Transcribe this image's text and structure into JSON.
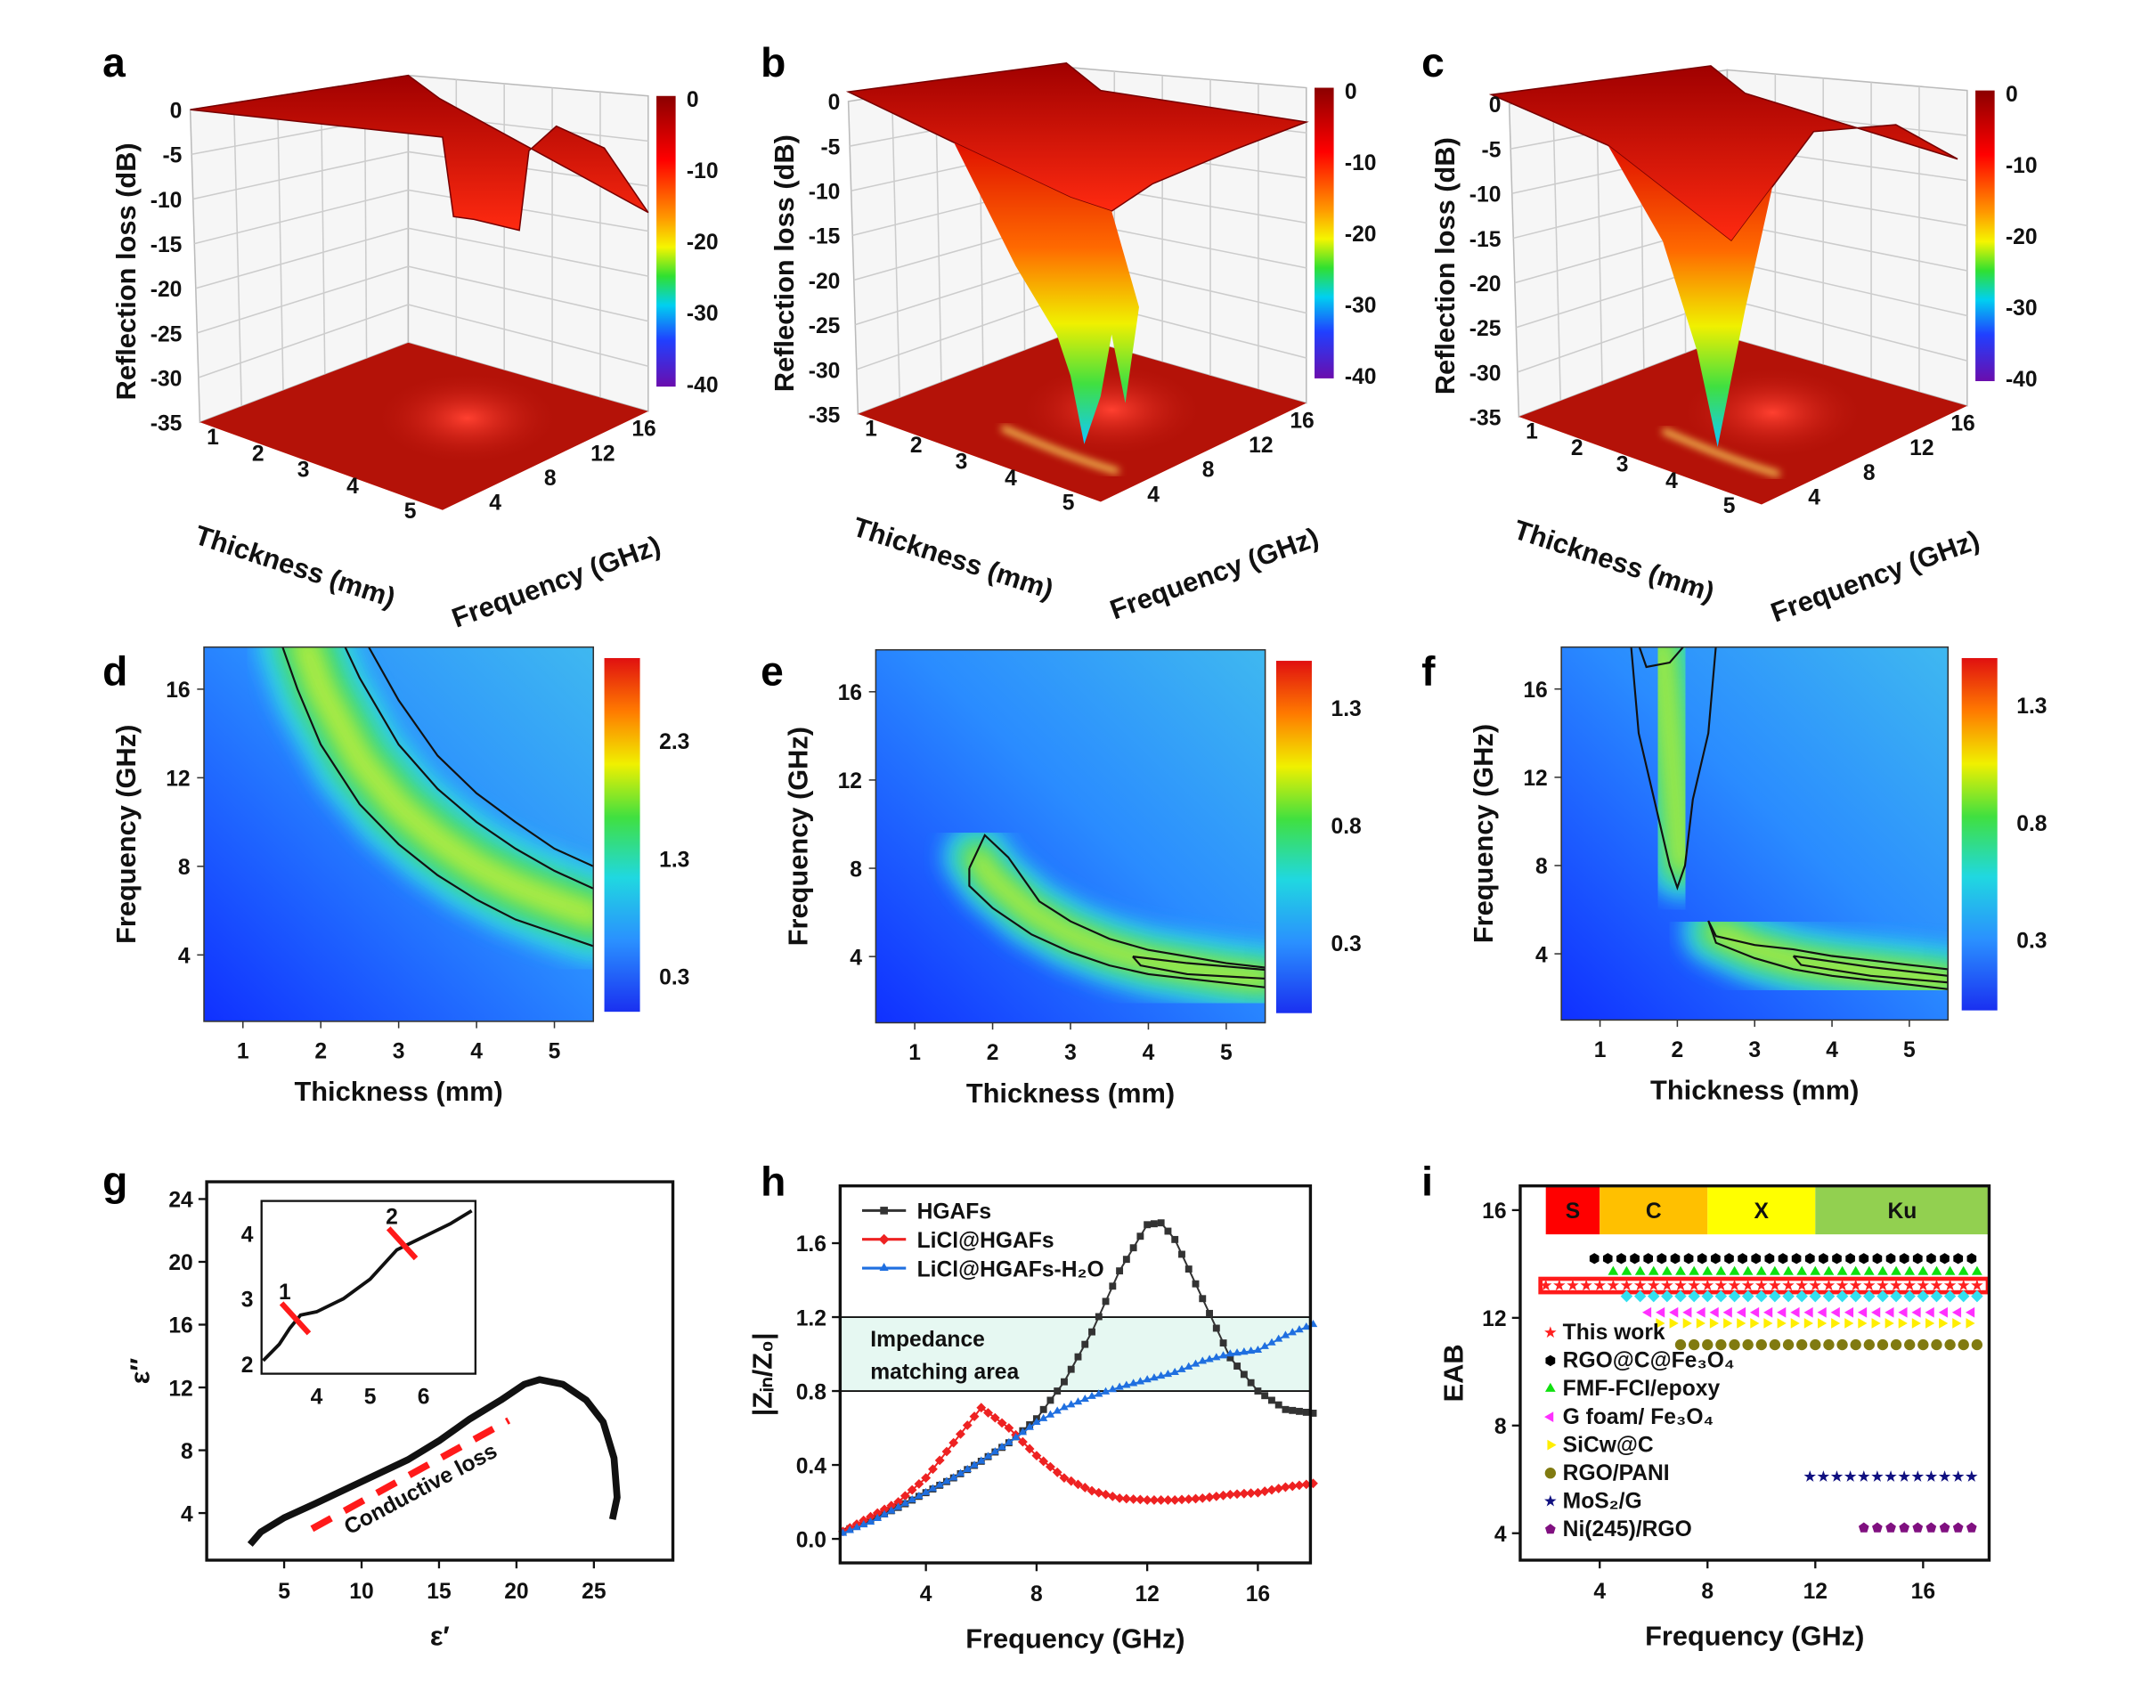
{
  "panel_labels": [
    "a",
    "b",
    "c",
    "d",
    "e",
    "f",
    "g",
    "h",
    "i"
  ],
  "chart_data": [
    {
      "panel": "a",
      "type": "surface3d",
      "zlabel": "Reflection loss (dB)",
      "xlabel": "Thickness (mm)",
      "ylabel": "Frequency (GHz)",
      "zticks": [
        "0",
        "-5",
        "-10",
        "-15",
        "-20",
        "-25",
        "-30",
        "-35"
      ],
      "xticks": [
        "1",
        "2",
        "3",
        "4",
        "5"
      ],
      "yticks": [
        "4",
        "8",
        "12",
        "16"
      ],
      "colorbar": {
        "ticks": [
          "0",
          "-10",
          "-20",
          "-30",
          "-40"
        ],
        "range": [
          -40,
          0
        ]
      },
      "surface_min_dB": -13
    },
    {
      "panel": "b",
      "type": "surface3d",
      "zlabel": "Reflection loss (dB)",
      "xlabel": "Thickness (mm)",
      "ylabel": "Frequency (GHz)",
      "zticks": [
        "0",
        "-5",
        "-10",
        "-15",
        "-20",
        "-25",
        "-30",
        "-35"
      ],
      "xticks": [
        "1",
        "2",
        "3",
        "4",
        "5"
      ],
      "yticks": [
        "4",
        "8",
        "12",
        "16"
      ],
      "colorbar": {
        "ticks": [
          "0",
          "-10",
          "-20",
          "-30",
          "-40"
        ],
        "range": [
          -40,
          0
        ]
      },
      "surface_min_dB": -36
    },
    {
      "panel": "c",
      "type": "surface3d",
      "zlabel": "Reflection loss (dB)",
      "xlabel": "Thickness (mm)",
      "ylabel": "Frequency (GHz)",
      "zticks": [
        "0",
        "-5",
        "-10",
        "-15",
        "-20",
        "-25",
        "-30",
        "-35"
      ],
      "xticks": [
        "1",
        "2",
        "3",
        "4",
        "5"
      ],
      "yticks": [
        "4",
        "8",
        "12",
        "16"
      ],
      "colorbar": {
        "ticks": [
          "0",
          "-10",
          "-20",
          "-30",
          "-40"
        ],
        "range": [
          -40,
          0
        ]
      },
      "surface_min_dB": -34
    },
    {
      "panel": "d",
      "type": "heatmap",
      "xlabel": "Thickness (mm)",
      "ylabel": "Frequency (GHz)",
      "xlim": [
        0.5,
        5.5
      ],
      "ylim": [
        1,
        17.9
      ],
      "xticks": [
        "1",
        "2",
        "3",
        "4",
        "5"
      ],
      "yticks": [
        "4",
        "8",
        "12",
        "16"
      ],
      "colorbar": {
        "ticks": [
          "0.3",
          "1.3",
          "2.3"
        ],
        "range": [
          0,
          3
        ]
      },
      "ridge": [
        [
          1.8,
          18
        ],
        [
          2,
          16
        ],
        [
          2.5,
          12.8
        ],
        [
          3,
          10.7
        ],
        [
          3.5,
          9.2
        ],
        [
          4,
          8
        ],
        [
          4.5,
          7.1
        ],
        [
          5,
          6.4
        ],
        [
          5.5,
          5.8
        ]
      ],
      "contours": [
        [
          [
            1.5,
            18
          ],
          [
            1.7,
            16
          ],
          [
            2,
            13.5
          ],
          [
            2.5,
            10.8
          ],
          [
            3,
            9
          ],
          [
            3.5,
            7.6
          ],
          [
            4,
            6.5
          ],
          [
            4.5,
            5.6
          ],
          [
            5,
            5
          ],
          [
            5.5,
            4.4
          ]
        ],
        [
          [
            2.3,
            18
          ],
          [
            2.5,
            16.5
          ],
          [
            3,
            13.5
          ],
          [
            3.5,
            11.5
          ],
          [
            4,
            10
          ],
          [
            4.5,
            8.8
          ],
          [
            5,
            7.8
          ],
          [
            5.5,
            7
          ]
        ],
        [
          [
            2.6,
            18
          ],
          [
            3,
            15.5
          ],
          [
            3.5,
            13
          ],
          [
            4,
            11.3
          ],
          [
            4.5,
            10
          ],
          [
            5,
            8.8
          ],
          [
            5.5,
            8
          ]
        ]
      ]
    },
    {
      "panel": "e",
      "type": "heatmap",
      "xlabel": "Thickness (mm)",
      "ylabel": "Frequency (GHz)",
      "xlim": [
        0.5,
        5.5
      ],
      "ylim": [
        1,
        17.9
      ],
      "xticks": [
        "1",
        "2",
        "3",
        "4",
        "5"
      ],
      "yticks": [
        "4",
        "8",
        "12",
        "16"
      ],
      "colorbar": {
        "ticks": [
          "0.3",
          "0.8",
          "1.3"
        ],
        "range": [
          0,
          1.5
        ]
      },
      "ridge": [
        [
          1.8,
          8.5
        ],
        [
          2,
          7.5
        ],
        [
          2.5,
          6
        ],
        [
          3,
          5
        ],
        [
          3.5,
          4.3
        ],
        [
          4,
          3.8
        ],
        [
          4.5,
          3.5
        ],
        [
          5,
          3.2
        ],
        [
          5.5,
          3
        ]
      ],
      "contours": [
        [
          [
            1.7,
            8
          ],
          [
            1.9,
            9.5
          ],
          [
            2.2,
            8.5
          ],
          [
            2.6,
            6.5
          ],
          [
            3,
            5.6
          ],
          [
            3.5,
            4.8
          ],
          [
            4,
            4.3
          ],
          [
            4.5,
            4
          ],
          [
            5,
            3.7
          ],
          [
            5.5,
            3.5
          ],
          [
            5.5,
            2.6
          ],
          [
            5,
            2.8
          ],
          [
            4.5,
            3
          ],
          [
            4,
            3.2
          ],
          [
            3.5,
            3.6
          ],
          [
            3,
            4.2
          ],
          [
            2.5,
            5
          ],
          [
            2,
            6.2
          ],
          [
            1.7,
            7.2
          ],
          [
            1.7,
            8
          ]
        ],
        [
          [
            3.8,
            4
          ],
          [
            4.5,
            3.7
          ],
          [
            5.5,
            3.4
          ],
          [
            5.5,
            3
          ],
          [
            4.5,
            3.2
          ],
          [
            3.9,
            3.6
          ],
          [
            3.8,
            4
          ]
        ]
      ]
    },
    {
      "panel": "f",
      "type": "heatmap",
      "xlabel": "Thickness (mm)",
      "ylabel": "Frequency (GHz)",
      "xlim": [
        0.5,
        5.5
      ],
      "ylim": [
        1,
        17.9
      ],
      "xticks": [
        "1",
        "2",
        "3",
        "4",
        "5"
      ],
      "yticks": [
        "4",
        "8",
        "12",
        "16"
      ],
      "colorbar": {
        "ticks": [
          "0.3",
          "0.8",
          "1.3"
        ],
        "range": [
          0,
          1.5
        ]
      },
      "ridge": [
        [
          1.8,
          18
        ],
        [
          1.9,
          14
        ],
        [
          2,
          10
        ],
        [
          2.05,
          8
        ]
      ],
      "ridge2": [
        [
          2.5,
          5
        ],
        [
          3,
          4.2
        ],
        [
          3.5,
          3.7
        ],
        [
          4,
          3.4
        ],
        [
          4.5,
          3.2
        ],
        [
          5,
          3
        ],
        [
          5.5,
          2.8
        ]
      ],
      "contours": [
        [
          [
            1.4,
            18
          ],
          [
            1.5,
            14
          ],
          [
            1.7,
            11
          ],
          [
            1.9,
            8
          ],
          [
            2,
            7
          ],
          [
            2.1,
            8
          ],
          [
            2.2,
            11
          ],
          [
            2.4,
            14
          ],
          [
            2.5,
            18
          ]
        ],
        [
          [
            1.5,
            18
          ],
          [
            1.6,
            17
          ],
          [
            1.9,
            17.2
          ],
          [
            2.1,
            18
          ]
        ],
        [
          [
            2.4,
            5.5
          ],
          [
            2.5,
            4.8
          ],
          [
            3,
            4.4
          ],
          [
            3.5,
            4.2
          ],
          [
            4,
            3.9
          ],
          [
            4.5,
            3.7
          ],
          [
            5,
            3.5
          ],
          [
            5.5,
            3.3
          ],
          [
            5.5,
            2.4
          ],
          [
            5,
            2.6
          ],
          [
            4.5,
            2.8
          ],
          [
            4,
            3
          ],
          [
            3.5,
            3.3
          ],
          [
            3,
            3.8
          ],
          [
            2.5,
            4.5
          ],
          [
            2.4,
            5.5
          ]
        ],
        [
          [
            3.5,
            3.9
          ],
          [
            4.5,
            3.4
          ],
          [
            5.5,
            3
          ],
          [
            5.5,
            2.7
          ],
          [
            4.5,
            3
          ],
          [
            3.6,
            3.5
          ],
          [
            3.5,
            3.9
          ]
        ]
      ]
    },
    {
      "panel": "g",
      "type": "scatter",
      "xlabel": "ε′",
      "ylabel": "ε″",
      "xlim": [
        0,
        30.1
      ],
      "ylim": [
        1,
        25.1
      ],
      "xticks": [
        "5",
        "10",
        "15",
        "20",
        "25"
      ],
      "yticks": [
        "4",
        "8",
        "12",
        "16",
        "20",
        "24"
      ],
      "values": [
        [
          2.8,
          2
        ],
        [
          3.5,
          2.8
        ],
        [
          5,
          3.7
        ],
        [
          7,
          4.6
        ],
        [
          10,
          6
        ],
        [
          13,
          7.4
        ],
        [
          15,
          8.6
        ],
        [
          17,
          10
        ],
        [
          19,
          11.2
        ],
        [
          20.5,
          12.2
        ],
        [
          21.5,
          12.5
        ],
        [
          23,
          12.2
        ],
        [
          24.5,
          11.2
        ],
        [
          25.6,
          9.8
        ],
        [
          26.3,
          7.5
        ],
        [
          26.5,
          5
        ],
        [
          26.2,
          3.6
        ]
      ],
      "annotation": "Conductive loss",
      "inset": {
        "xlim": [
          2.97,
          6.97
        ],
        "ylim": [
          1.85,
          4.5
        ],
        "xticks": [
          "4",
          "5",
          "6"
        ],
        "yticks": [
          "2",
          "3",
          "4"
        ],
        "values": [
          [
            3,
            2.05
          ],
          [
            3.3,
            2.3
          ],
          [
            3.5,
            2.55
          ],
          [
            3.7,
            2.75
          ],
          [
            4,
            2.8
          ],
          [
            4.5,
            3.0
          ],
          [
            5,
            3.3
          ],
          [
            5.5,
            3.75
          ],
          [
            6,
            3.95
          ],
          [
            6.5,
            4.15
          ],
          [
            6.9,
            4.35
          ]
        ],
        "markers": [
          {
            "label": "1",
            "x": 3.6,
            "y": 2.7
          },
          {
            "label": "2",
            "x": 5.6,
            "y": 3.85
          }
        ]
      }
    },
    {
      "panel": "h",
      "type": "line",
      "xlabel": "Frequency (GHz)",
      "ylabel": "|Zᵢₙ/Z₀|",
      "xlim": [
        0.9,
        17.9
      ],
      "ylim": [
        -0.13,
        1.91
      ],
      "xticks": [
        "4",
        "8",
        "12",
        "16"
      ],
      "yticks": [
        "0.0",
        "0.4",
        "0.8",
        "1.2",
        "1.6"
      ],
      "band": {
        "range": [
          0.8,
          1.2
        ],
        "label_lines": [
          "Impedance",
          "matching area"
        ],
        "color": "#e6f8f2"
      },
      "x": [
        1,
        2,
        3,
        4,
        5,
        6,
        7,
        8,
        9,
        10,
        11,
        12,
        12.5,
        13,
        14,
        15,
        16,
        17,
        18
      ],
      "series": [
        {
          "name": "HGAFs",
          "color": "#333333",
          "marker": "square",
          "values": [
            0.04,
            0.1,
            0.17,
            0.25,
            0.33,
            0.42,
            0.52,
            0.65,
            0.85,
            1.12,
            1.45,
            1.7,
            1.71,
            1.62,
            1.3,
            0.98,
            0.8,
            0.7,
            0.68
          ]
        },
        {
          "name": "LiCl@HGAFs",
          "color": "#ee2222",
          "marker": "diamond",
          "values": [
            0.04,
            0.12,
            0.2,
            0.33,
            0.52,
            0.71,
            0.6,
            0.45,
            0.33,
            0.26,
            0.22,
            0.21,
            0.21,
            0.21,
            0.22,
            0.24,
            0.25,
            0.28,
            0.3
          ]
        },
        {
          "name": "LiCl@HGAFs-H₂O",
          "color": "#1f6fe0",
          "marker": "triangle",
          "values": [
            0.03,
            0.09,
            0.17,
            0.25,
            0.33,
            0.42,
            0.52,
            0.63,
            0.71,
            0.77,
            0.82,
            0.86,
            0.88,
            0.9,
            0.96,
            1.0,
            1.02,
            1.1,
            1.16
          ]
        }
      ]
    },
    {
      "panel": "i",
      "type": "scatter",
      "xlabel": "Frequency (GHz)",
      "ylabel": "EAB",
      "xlim": [
        1.05,
        18.45
      ],
      "ylim": [
        3,
        16.9
      ],
      "xticks": [
        "4",
        "8",
        "12",
        "16"
      ],
      "yticks": [
        "4",
        "8",
        "12",
        "16"
      ],
      "bands": [
        {
          "label": "S",
          "from": 2,
          "to": 4,
          "color": "#ff0000"
        },
        {
          "label": "C",
          "from": 4,
          "to": 8,
          "color": "#ffc000"
        },
        {
          "label": "X",
          "from": 8,
          "to": 12,
          "color": "#ffff00"
        },
        {
          "label": "Ku",
          "from": 12,
          "to": 18.45,
          "color": "#92d050"
        }
      ],
      "series": [
        {
          "name": "This work",
          "color": "#ff2020",
          "marker": "star",
          "y": 13.2,
          "x_range": [
            2,
            18
          ],
          "highlight": true
        },
        {
          "name": "RGO@C@Fe₃O₄",
          "color": "#000000",
          "marker": "hexagon",
          "y": 14.2,
          "x_range": [
            3.8,
            18
          ]
        },
        {
          "name": "FMF-FCI/epoxy",
          "color": "#10e010",
          "marker": "triangle-up",
          "y": 13.7,
          "x_range": [
            4.5,
            18
          ]
        },
        {
          "color": "#33e0f0",
          "marker": "diamond",
          "y": 12.8,
          "x_range": [
            5,
            18
          ]
        },
        {
          "name": "G foam/ Fe₃O₄",
          "color": "#ff30ff",
          "marker": "triangle-left",
          "y": 12.2,
          "x_range": [
            5.8,
            18
          ]
        },
        {
          "name": "SiCw@C",
          "color": "#ffee00",
          "marker": "triangle-right",
          "y": 11.8,
          "x_range": [
            6.2,
            18
          ]
        },
        {
          "name": "RGO/PANI",
          "color": "#807a10",
          "marker": "circle",
          "y": 11.0,
          "x_range": [
            7,
            18
          ]
        },
        {
          "name": "MoS₂/G",
          "color": "#101080",
          "marker": "star",
          "y": 6.1,
          "x_range": [
            11.8,
            18
          ]
        },
        {
          "name": "Ni(245)/RGO",
          "color": "#801080",
          "marker": "pentagon",
          "y": 4.2,
          "x_range": [
            13.8,
            18
          ]
        }
      ]
    }
  ]
}
